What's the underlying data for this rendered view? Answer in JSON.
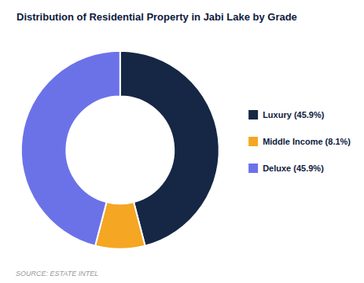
{
  "chart_data": {
    "type": "pie",
    "title": "Distribution of Residential Property in Jabi Lake by Grade",
    "categories": [
      "Luxury (45.9%)",
      "Middle Income (8.1%)",
      "Deluxe (45.9%)"
    ],
    "values": [
      45.9,
      8.1,
      45.9
    ],
    "colors": [
      "#152744",
      "#f5a623",
      "#6b72e8"
    ],
    "legend": "right",
    "annotations": [
      "SOURCE: ESTATE INTEL"
    ]
  }
}
